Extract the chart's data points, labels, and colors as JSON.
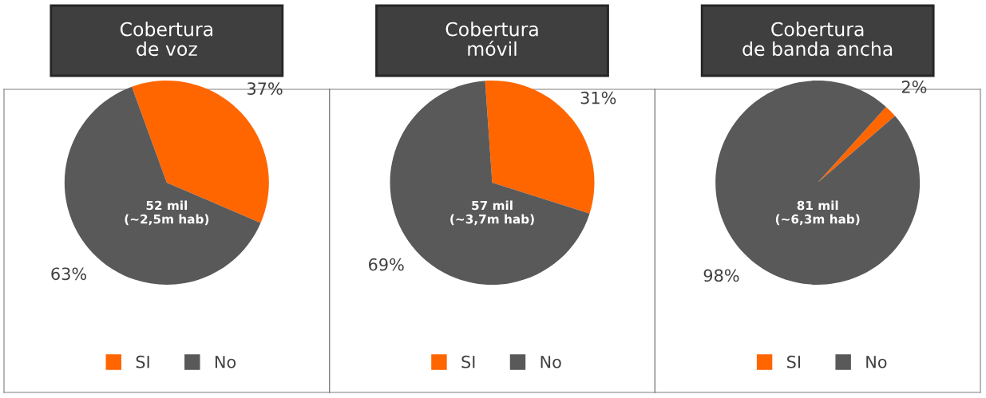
{
  "chart_data": [
    {
      "type": "pie",
      "title": "Cobertura\nde voz",
      "categories": [
        "SI",
        "No"
      ],
      "values": [
        37,
        63
      ],
      "colors": [
        "#ff6600",
        "#595959"
      ],
      "value_labels": [
        "37%",
        "63%"
      ],
      "legend": "bottom",
      "annotations": [
        "52 mil\n(~2,5m hab)"
      ]
    },
    {
      "type": "pie",
      "title": "Cobertura\nmóvil",
      "categories": [
        "SI",
        "No"
      ],
      "values": [
        31,
        69
      ],
      "colors": [
        "#ff6600",
        "#595959"
      ],
      "value_labels": [
        "31%",
        "69%"
      ],
      "legend": "bottom",
      "annotations": [
        "57 mil\n(~3,7m hab)"
      ]
    },
    {
      "type": "pie",
      "title": "Cobertura\nde banda ancha",
      "categories": [
        "SI",
        "No"
      ],
      "values": [
        2,
        98
      ],
      "colors": [
        "#ff6600",
        "#595959"
      ],
      "value_labels": [
        "2%",
        "98%"
      ],
      "legend": "bottom",
      "annotations": [
        "81 mil\n(~6,3m hab)"
      ]
    }
  ]
}
